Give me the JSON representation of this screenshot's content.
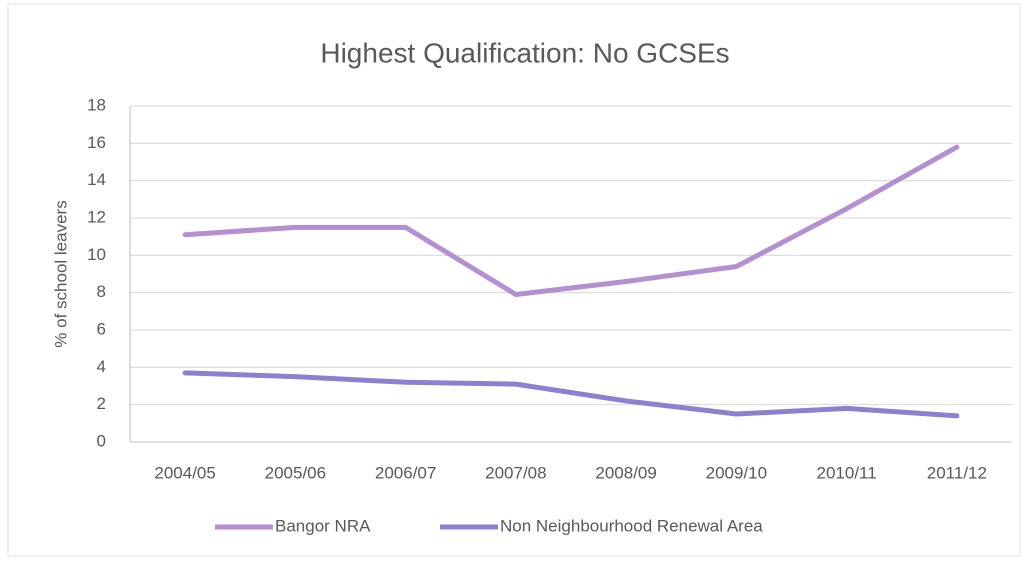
{
  "chart_data": {
    "type": "line",
    "title": "Highest Qualification: No GCSEs",
    "y_label": "% of school leavers",
    "categories": [
      "2004/05",
      "2005/06",
      "2006/07",
      "2007/08",
      "2008/09",
      "2009/10",
      "2010/11",
      "2011/12"
    ],
    "series": [
      {
        "name": "Bangor NRA",
        "color": "#b48fd1",
        "values": [
          11.1,
          11.5,
          11.5,
          7.9,
          8.6,
          9.4,
          12.5,
          15.8
        ]
      },
      {
        "name": "Non Neighbourhood Renewal Area",
        "color": "#8d80d0",
        "values": [
          3.7,
          3.5,
          3.2,
          3.1,
          2.2,
          1.5,
          1.8,
          1.4
        ]
      }
    ],
    "ylim": [
      0,
      18
    ],
    "yticks": [
      0,
      2,
      4,
      6,
      8,
      10,
      12,
      14,
      16,
      18
    ],
    "grid": true,
    "legend": "bottom"
  }
}
